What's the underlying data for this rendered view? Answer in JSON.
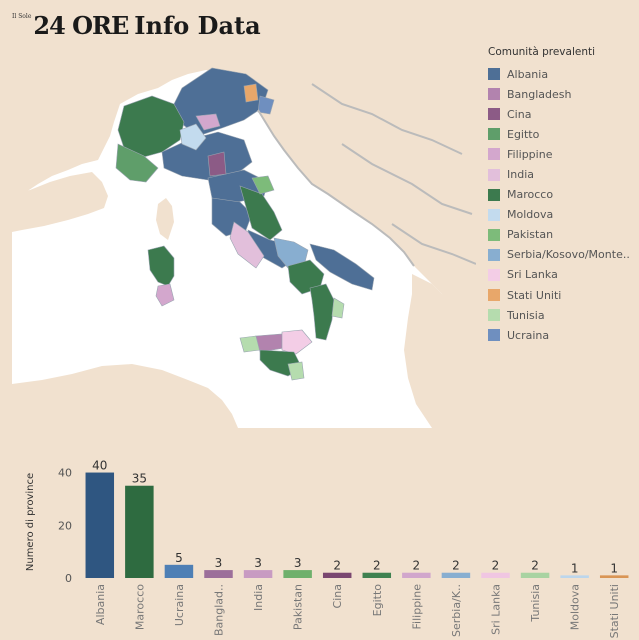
{
  "header": {
    "brand_small": "Il Sole",
    "brand_main": "24 ORE",
    "brand_info": "Info Data"
  },
  "legend": {
    "title": "Comunità prevalenti",
    "items": [
      {
        "label": "Albania",
        "color": "#4e6f96"
      },
      {
        "label": "Bangladesh",
        "color": "#b283ae"
      },
      {
        "label": "Cina",
        "color": "#8c5b86"
      },
      {
        "label": "Egitto",
        "color": "#5f9e6a"
      },
      {
        "label": "Filippine",
        "color": "#d3a7cd"
      },
      {
        "label": "India",
        "color": "#e2bfdb"
      },
      {
        "label": "Marocco",
        "color": "#3c7a4e"
      },
      {
        "label": "Moldova",
        "color": "#c3dbee"
      },
      {
        "label": "Pakistan",
        "color": "#7dbb7a"
      },
      {
        "label": "Serbia/Kosovo/Monte..",
        "color": "#88aed0"
      },
      {
        "label": "Sri Lanka",
        "color": "#f3cde6"
      },
      {
        "label": "Stati Uniti",
        "color": "#e8a76a"
      },
      {
        "label": "Tunisia",
        "color": "#b5dcae"
      },
      {
        "label": "Ucraina",
        "color": "#6f8fbf"
      }
    ]
  },
  "map": {
    "land_color": "#f1e1cf",
    "sea_color": "#ffffff",
    "border_color": "#bbbbbb"
  },
  "chart_data": {
    "type": "bar",
    "ylabel": "Numero di province",
    "yticks": [
      0,
      20,
      40
    ],
    "ylim": [
      0,
      44
    ],
    "categories": [
      "Albania",
      "Marocco",
      "Ucraina",
      "Banglad..",
      "India",
      "Pakistan",
      "Cina",
      "Egitto",
      "Filippine",
      "Serbia/K..",
      "Sri Lanka",
      "Tunisia",
      "Moldova",
      "Stati Uniti"
    ],
    "values": [
      40,
      35,
      5,
      3,
      3,
      3,
      2,
      2,
      2,
      2,
      2,
      2,
      1,
      1
    ],
    "colors": [
      "#2f5681",
      "#2e6b40",
      "#4e7fb5",
      "#9c6f9a",
      "#c89bc2",
      "#6fb06c",
      "#7a4770",
      "#3f8150",
      "#d1a6cc",
      "#88aed0",
      "#f0c6e2",
      "#a9d3a2",
      "#bcd6ec",
      "#d99555"
    ]
  }
}
